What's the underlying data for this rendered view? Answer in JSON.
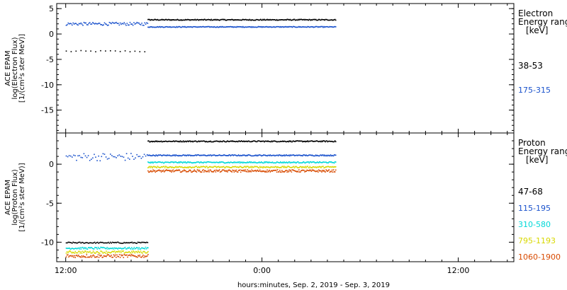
{
  "chart_data": [
    {
      "type": "scatter",
      "ylabel_lines": [
        "ACE EPAM",
        "log(Electron Flux)",
        "[1/(cm²s ster MeV)]"
      ],
      "ylim": [
        -19.5,
        6
      ],
      "yticks": [
        5,
        0,
        -5,
        -10,
        -15
      ],
      "legend_title_lines": [
        "Electron",
        "Energy range",
        "[keV]"
      ],
      "series": [
        {
          "name": "38-53",
          "color": "#000000",
          "segments": [
            {
              "x": [
                0.0,
                5.0
              ],
              "y": -3.3,
              "scatter": 0.15,
              "step": 0.3
            },
            {
              "x": [
                5.0,
                16.5
              ],
              "y": 2.9,
              "scatter": 0.1,
              "step": 0.045
            }
          ]
        },
        {
          "name": "175-315",
          "color": "#1a52cc",
          "segments": [
            {
              "x": [
                0.0,
                5.0
              ],
              "y": 2.1,
              "scatter": 0.3,
              "step": 0.06
            },
            {
              "x": [
                5.0,
                16.5
              ],
              "y": 1.5,
              "scatter": 0.08,
              "step": 0.045
            }
          ]
        }
      ]
    },
    {
      "type": "scatter",
      "ylabel_lines": [
        "ACE EPAM",
        "log(Proton Flux)",
        "[1/(cm²s ster MeV)]"
      ],
      "ylim": [
        -12.5,
        4
      ],
      "yticks": [
        0,
        -5,
        -10
      ],
      "legend_title_lines": [
        "Proton",
        "Energy range",
        "[keV]"
      ],
      "series": [
        {
          "name": "47-68",
          "color": "#000000",
          "segments": [
            {
              "x": [
                0.0,
                5.0
              ],
              "y": -10.0,
              "scatter": 0.08,
              "step": 0.06
            },
            {
              "x": [
                5.0,
                16.5
              ],
              "y": 3.0,
              "scatter": 0.07,
              "step": 0.045
            }
          ]
        },
        {
          "name": "115-195",
          "color": "#1a52cc",
          "segments": [
            {
              "x": [
                0.0,
                5.0
              ],
              "y": 1.0,
              "scatter": 0.5,
              "step": 0.09
            },
            {
              "x": [
                5.0,
                16.5
              ],
              "y": 1.2,
              "scatter": 0.07,
              "step": 0.045
            }
          ]
        },
        {
          "name": "310-580",
          "color": "#00d8d8",
          "segments": [
            {
              "x": [
                0.0,
                5.0
              ],
              "y": -10.7,
              "scatter": 0.12,
              "step": 0.05
            },
            {
              "x": [
                5.0,
                16.5
              ],
              "y": 0.3,
              "scatter": 0.08,
              "step": 0.045
            }
          ]
        },
        {
          "name": "795-1193",
          "color": "#d8d800",
          "segments": [
            {
              "x": [
                0.0,
                5.0
              ],
              "y": -11.2,
              "scatter": 0.15,
              "step": 0.05
            },
            {
              "x": [
                5.0,
                16.5
              ],
              "y": -0.3,
              "scatter": 0.1,
              "step": 0.045
            }
          ]
        },
        {
          "name": "1060-1900",
          "color": "#d84a00",
          "segments": [
            {
              "x": [
                0.0,
                5.0
              ],
              "y": -11.7,
              "scatter": 0.2,
              "step": 0.05
            },
            {
              "x": [
                5.0,
                16.5
              ],
              "y": -0.8,
              "scatter": 0.15,
              "step": 0.045
            }
          ]
        }
      ]
    }
  ],
  "x_axis": {
    "xlim": [
      -0.55,
      27.4
    ],
    "tick_labels": [
      {
        "x": 0,
        "label": "12:00"
      },
      {
        "x": 12,
        "label": "0:00"
      },
      {
        "x": 24,
        "label": "12:00"
      }
    ],
    "title": "hours:minutes, Sep.  2, 2019 - Sep.  3, 2019"
  }
}
